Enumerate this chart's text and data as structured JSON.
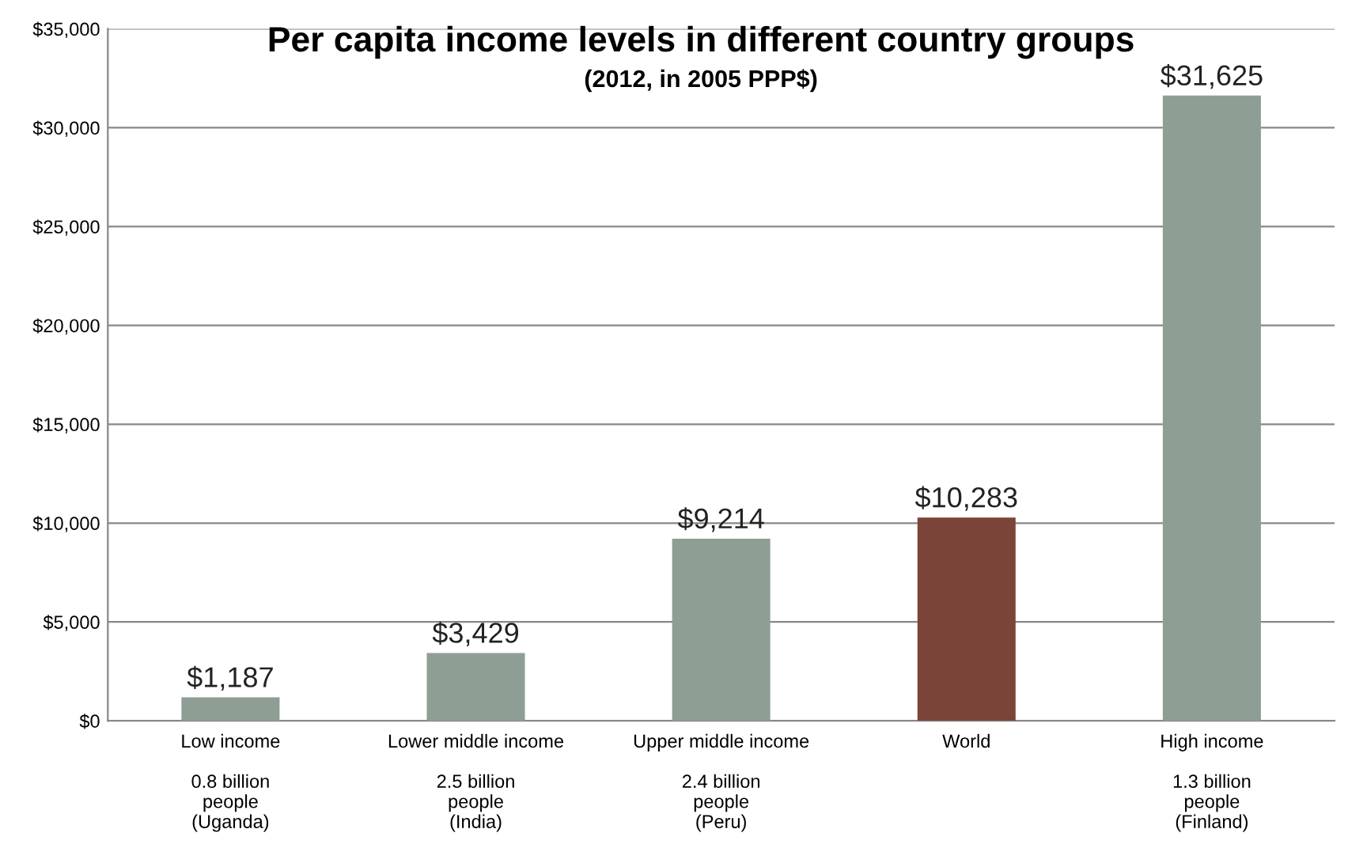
{
  "chart_data": {
    "type": "bar",
    "title": "Per capita income levels in different country groups",
    "subtitle": "(2012, in 2005 PPP$)",
    "categories": [
      "Low income\n\n0.8 billion\npeople\n(Uganda)",
      "Lower middle income\n\n2.5 billion\npeople\n(India)",
      "Upper middle income\n\n2.4 billion\npeople\n(Peru)",
      "World",
      "High income\n\n1.3 billion\npeople\n(Finland)"
    ],
    "values": [
      1187,
      3429,
      9214,
      10283,
      31625
    ],
    "colors": [
      "#8f9e94",
      "#8f9e94",
      "#8f9e94",
      "#7a4538",
      "#8f9e94"
    ],
    "value_labels": [
      "$1,187",
      "$3,429",
      "$9,214",
      "$10,283",
      "$31,625"
    ],
    "ylim": [
      0,
      35000
    ],
    "yticks": [
      {
        "value": 0,
        "label": "$0"
      },
      {
        "value": 5000,
        "label": "$5,000"
      },
      {
        "value": 10000,
        "label": "$10,000"
      },
      {
        "value": 15000,
        "label": "$15,000"
      },
      {
        "value": 20000,
        "label": "$20,000"
      },
      {
        "value": 25000,
        "label": "$25,000"
      },
      {
        "value": 30000,
        "label": "$30,000"
      },
      {
        "value": 35000,
        "label": "$35,000"
      }
    ],
    "grid": "y"
  }
}
